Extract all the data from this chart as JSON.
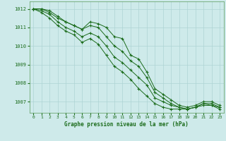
{
  "title": "Graphe pression niveau de la mer (hPa)",
  "background_color": "#ceeaea",
  "grid_color": "#add4d4",
  "line_color": "#1a6b1a",
  "xlim": [
    -0.5,
    23.5
  ],
  "ylim": [
    1006.4,
    1012.4
  ],
  "yticks": [
    1007,
    1008,
    1009,
    1010,
    1011,
    1012
  ],
  "xticks": [
    0,
    1,
    2,
    3,
    4,
    5,
    6,
    7,
    8,
    9,
    10,
    11,
    12,
    13,
    14,
    15,
    16,
    17,
    18,
    19,
    20,
    21,
    22,
    23
  ],
  "series": [
    [
      1012.0,
      1012.0,
      1011.8,
      1011.5,
      1011.3,
      1011.1,
      1010.9,
      1011.3,
      1011.2,
      1011.0,
      1010.5,
      1010.4,
      1009.5,
      1009.3,
      1008.6,
      1007.7,
      1007.4,
      1007.1,
      1006.8,
      1006.7,
      1006.8,
      1007.0,
      1007.0,
      1006.8
    ],
    [
      1012.0,
      1012.0,
      1011.9,
      1011.6,
      1011.3,
      1011.1,
      1010.9,
      1011.1,
      1011.0,
      1010.5,
      1010.0,
      1009.7,
      1009.2,
      1008.9,
      1008.3,
      1007.5,
      1007.2,
      1006.9,
      1006.7,
      1006.6,
      1006.7,
      1006.9,
      1006.9,
      1006.7
    ],
    [
      1012.0,
      1011.9,
      1011.7,
      1011.3,
      1011.0,
      1010.8,
      1010.5,
      1010.7,
      1010.5,
      1010.0,
      1009.4,
      1009.1,
      1008.7,
      1008.3,
      1007.9,
      1007.2,
      1007.0,
      1006.8,
      1006.7,
      1006.6,
      1006.7,
      1006.9,
      1006.8,
      1006.7
    ],
    [
      1012.0,
      1011.8,
      1011.5,
      1011.1,
      1010.8,
      1010.6,
      1010.2,
      1010.4,
      1010.1,
      1009.5,
      1008.9,
      1008.6,
      1008.2,
      1007.7,
      1007.3,
      1006.9,
      1006.7,
      1006.6,
      1006.6,
      1006.6,
      1006.7,
      1006.8,
      1006.8,
      1006.6
    ]
  ]
}
